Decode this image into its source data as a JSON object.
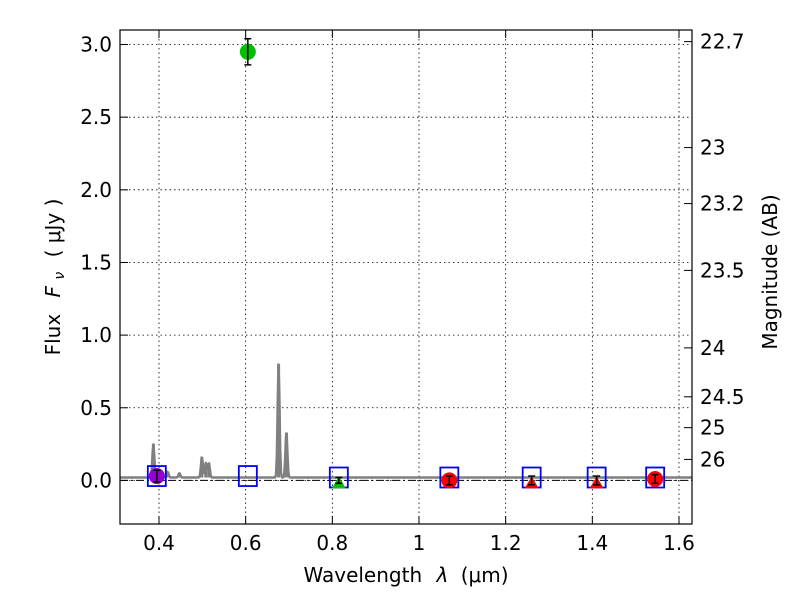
{
  "chart_data": {
    "type": "scatter",
    "xlabel": "Wavelength",
    "xlabel_symbol": "λ",
    "xlabel_unit": "(μm)",
    "ylabel": "Flux",
    "ylabel_symbol": "F",
    "ylabel_symbol_sub": "ν",
    "ylabel_unit": "( μJy )",
    "ylabel_right": "Magnitude (AB)",
    "xlim": [
      0.31,
      1.63
    ],
    "ylim": [
      -0.3,
      3.1
    ],
    "x_ticks": [
      0.4,
      0.6,
      0.8,
      1.0,
      1.2,
      1.4,
      1.6
    ],
    "x_tick_labels": [
      "0.4",
      "0.6",
      "0.8",
      "1",
      "1.2",
      "1.4",
      "1.6"
    ],
    "y_ticks": [
      0.0,
      0.5,
      1.0,
      1.5,
      2.0,
      2.5,
      3.0
    ],
    "y_tick_labels": [
      "0.0",
      "0.5",
      "1.0",
      "1.5",
      "2.0",
      "2.5",
      "3.0"
    ],
    "y_right_ticks": [
      22.7,
      23,
      23.2,
      23.5,
      24,
      24.5,
      25,
      26
    ],
    "y_right_tick_labels": [
      "22.7",
      "23",
      "23.2",
      "23.5",
      "24",
      "24.5",
      "25",
      "26"
    ],
    "grid": true,
    "model_spectrum": {
      "color": "#808080",
      "baseline": 0.02,
      "lines": [
        {
          "x": 0.387,
          "peak": 0.25
        },
        {
          "x": 0.42,
          "peak": 0.06
        },
        {
          "x": 0.447,
          "peak": 0.05
        },
        {
          "x": 0.499,
          "peak": 0.16
        },
        {
          "x": 0.508,
          "peak": 0.12
        },
        {
          "x": 0.515,
          "peak": 0.12
        },
        {
          "x": 0.676,
          "peak": 0.8
        },
        {
          "x": 0.694,
          "peak": 0.33
        }
      ]
    },
    "model_photometry": {
      "marker": "square",
      "color": "#0000ff",
      "points": [
        {
          "x": 0.395,
          "y": 0.03
        },
        {
          "x": 0.605,
          "y": 0.03
        },
        {
          "x": 0.815,
          "y": 0.02
        },
        {
          "x": 1.07,
          "y": 0.02
        },
        {
          "x": 1.26,
          "y": 0.02
        },
        {
          "x": 1.41,
          "y": 0.02
        },
        {
          "x": 1.545,
          "y": 0.02
        }
      ]
    },
    "observed_photometry": [
      {
        "x": 0.395,
        "y": 0.03,
        "err": 0.04,
        "marker": "circle",
        "color": "#9400d3"
      },
      {
        "x": 0.605,
        "y": 2.95,
        "err": 0.09,
        "marker": "circle",
        "color": "#00c000"
      },
      {
        "x": 0.815,
        "y": 0.0,
        "err": 0.02,
        "marker": "triangle",
        "color": "#00c000"
      },
      {
        "x": 1.07,
        "y": 0.0,
        "err": 0.03,
        "marker": "circle",
        "color": "#ff0000"
      },
      {
        "x": 1.26,
        "y": 0.0,
        "err": 0.03,
        "marker": "triangle",
        "color": "#ff0000"
      },
      {
        "x": 1.41,
        "y": 0.0,
        "err": 0.03,
        "marker": "triangle",
        "color": "#ff0000"
      },
      {
        "x": 1.545,
        "y": 0.01,
        "err": 0.03,
        "marker": "circle",
        "color": "#ff0000"
      }
    ],
    "zero_line": {
      "y": 0.0,
      "style": "dashdot",
      "color": "#000000"
    }
  }
}
